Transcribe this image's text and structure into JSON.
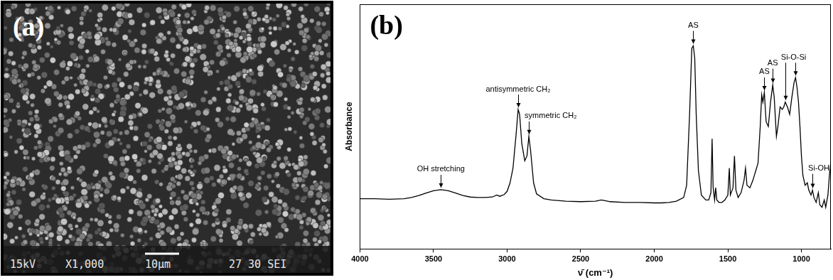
{
  "image_panel": {
    "label": "(a)",
    "info_bar": {
      "voltage": "15kV",
      "magnification": "X1,000",
      "scale_bar": "10μm",
      "code": "27 30 SEI"
    }
  },
  "chart_data": {
    "type": "line",
    "title": "(b)",
    "x_label": "ν̄ (cm⁻¹)",
    "y_label": "Absorbance",
    "x": [
      4000,
      3900,
      3800,
      3700,
      3650,
      3600,
      3550,
      3500,
      3450,
      3400,
      3350,
      3300,
      3250,
      3200,
      3150,
      3100,
      3070,
      3050,
      3020,
      3000,
      2980,
      2960,
      2940,
      2925,
      2915,
      2900,
      2880,
      2865,
      2852,
      2840,
      2820,
      2800,
      2750,
      2700,
      2600,
      2500,
      2400,
      2360,
      2340,
      2300,
      2200,
      2100,
      2000,
      1950,
      1900,
      1850,
      1800,
      1780,
      1760,
      1745,
      1735,
      1725,
      1715,
      1700,
      1680,
      1650,
      1630,
      1615,
      1607,
      1600,
      1590,
      1583,
      1575,
      1560,
      1540,
      1520,
      1500,
      1490,
      1483,
      1465,
      1455,
      1445,
      1430,
      1410,
      1390,
      1380,
      1370,
      1350,
      1330,
      1310,
      1295,
      1280,
      1270,
      1262,
      1252,
      1240,
      1225,
      1210,
      1195,
      1185,
      1170,
      1160,
      1145,
      1130,
      1120,
      1110,
      1095,
      1080,
      1065,
      1050,
      1040,
      1030,
      1020,
      1010,
      1000,
      990,
      975,
      960,
      950,
      935,
      925,
      915,
      900,
      885,
      875,
      860,
      845,
      835,
      820,
      810,
      800
    ],
    "values": [
      0.205,
      0.205,
      0.203,
      0.205,
      0.21,
      0.218,
      0.228,
      0.238,
      0.242,
      0.238,
      0.228,
      0.218,
      0.212,
      0.21,
      0.21,
      0.212,
      0.22,
      0.215,
      0.222,
      0.235,
      0.27,
      0.33,
      0.46,
      0.57,
      0.55,
      0.43,
      0.36,
      0.38,
      0.46,
      0.4,
      0.27,
      0.225,
      0.205,
      0.2,
      0.195,
      0.193,
      0.195,
      0.2,
      0.198,
      0.193,
      0.19,
      0.19,
      0.188,
      0.188,
      0.19,
      0.195,
      0.21,
      0.26,
      0.55,
      0.82,
      0.83,
      0.78,
      0.55,
      0.32,
      0.22,
      0.2,
      0.2,
      0.23,
      0.45,
      0.25,
      0.2,
      0.25,
      0.2,
      0.19,
      0.19,
      0.2,
      0.22,
      0.33,
      0.22,
      0.25,
      0.38,
      0.24,
      0.21,
      0.23,
      0.28,
      0.33,
      0.26,
      0.25,
      0.28,
      0.32,
      0.35,
      0.5,
      0.63,
      0.6,
      0.64,
      0.52,
      0.5,
      0.6,
      0.67,
      0.62,
      0.46,
      0.5,
      0.58,
      0.57,
      0.58,
      0.6,
      0.58,
      0.55,
      0.62,
      0.68,
      0.7,
      0.66,
      0.6,
      0.5,
      0.38,
      0.3,
      0.26,
      0.27,
      0.24,
      0.22,
      0.24,
      0.21,
      0.19,
      0.23,
      0.18,
      0.17,
      0.2,
      0.17,
      0.22,
      0.3,
      0.36
    ],
    "color": "#000000",
    "xlim": [
      4000,
      800
    ],
    "xticks": [
      4000,
      3500,
      3000,
      2500,
      2000,
      1500,
      1000
    ],
    "ylim": [
      0,
      1
    ],
    "tick_labels": "x",
    "grid": false,
    "annotations": [
      {
        "text": "OH stretching",
        "x": 3450
      },
      {
        "text": "antisymmetric CH₂",
        "x": 2925
      },
      {
        "text": "symmetric CH₂",
        "x": 2852
      },
      {
        "text": "AS",
        "x": 1735
      },
      {
        "text": "AS",
        "x": 1252
      },
      {
        "text": "AS",
        "x": 1195
      },
      {
        "text": "Si-O-Si",
        "x": [
          1110,
          1040
        ]
      },
      {
        "text": "Si-OH",
        "x": 925
      }
    ]
  }
}
